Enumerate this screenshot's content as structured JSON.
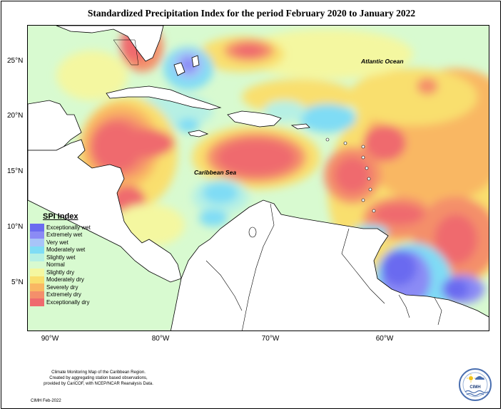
{
  "title": "Standardized Precipitation Index for the period February 2020 to January 2022",
  "latitude_labels": [
    "25°N",
    "20°N",
    "15°N",
    "10°N",
    "5°N"
  ],
  "longitude_labels": [
    "90°W",
    "80°W",
    "70°W",
    "60°W"
  ],
  "ocean_labels": {
    "atlantic": "Atlantic Ocean",
    "caribbean": "Caribbean Sea"
  },
  "legend": {
    "title": "SPI Index",
    "items": [
      {
        "label": "Exceptionally wet",
        "color": "#6b6bf0"
      },
      {
        "label": "Extremely wet",
        "color": "#8b8bf5"
      },
      {
        "label": "Very wet",
        "color": "#a8c4f8"
      },
      {
        "label": "Moderately wet",
        "color": "#7fdcf5"
      },
      {
        "label": "Slightly wet",
        "color": "#b6f0e4"
      },
      {
        "label": "Normal",
        "color": "#d8fad0"
      },
      {
        "label": "Slightly dry",
        "color": "#f4f7a0"
      },
      {
        "label": "Moderately dry",
        "color": "#f9df6e"
      },
      {
        "label": "Severely dry",
        "color": "#f9b763"
      },
      {
        "label": "Extremely dry",
        "color": "#f48f6b"
      },
      {
        "label": "Exceptionally dry",
        "color": "#ef6a6e"
      }
    ]
  },
  "footer": {
    "line1": "Climate Monitoring Map of the Caribbean Region.",
    "line2": "Created by aggregating station based observations,",
    "line3": "provided by CariCOF, with NCEP/NCAR Reanalysis Data.",
    "date": "CIMH Feb-2022"
  },
  "logo": {
    "text": "CIMH",
    "icon": "cimh-logo-icon"
  }
}
